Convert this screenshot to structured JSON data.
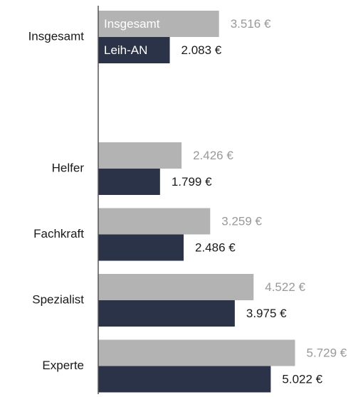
{
  "chart_data": {
    "type": "bar",
    "orientation": "horizontal",
    "categories": [
      "Insgesamt",
      "Helfer",
      "Fachkraft",
      "Spezialist",
      "Experte"
    ],
    "series": [
      {
        "name": "Insgesamt",
        "color": "#b3b3b3",
        "label_color": "#999999",
        "values": [
          3516,
          2426,
          3259,
          4522,
          5729
        ],
        "value_labels": [
          "3.516 €",
          "2.426 €",
          "3.259 €",
          "4.522 €",
          "5.729 €"
        ]
      },
      {
        "name": "Leih-AN",
        "color": "#2b3349",
        "label_color": "#1a1a1a",
        "values": [
          2083,
          1799,
          2486,
          3975,
          5022
        ],
        "value_labels": [
          "2.083 €",
          "1.799 €",
          "2.486 €",
          "3.975 €",
          "5.022 €"
        ]
      }
    ],
    "xlim": [
      0,
      7500
    ]
  }
}
